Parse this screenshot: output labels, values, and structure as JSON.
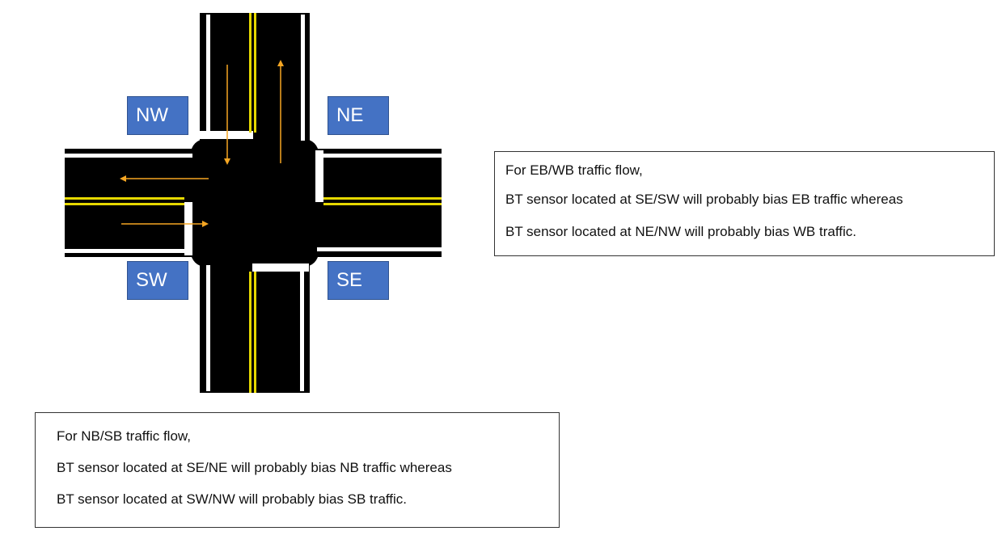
{
  "labels": {
    "nw": "NW",
    "ne": "NE",
    "sw": "SW",
    "se": "SE"
  },
  "ew_note": {
    "line1": "For EB/WB traffic flow,",
    "line2": "BT sensor located at SE/SW will probably bias EB traffic whereas",
    "line3": "BT sensor located at NE/NW will probably bias WB traffic."
  },
  "ns_note": {
    "line1": "For NB/SB traffic flow,",
    "line2": "BT sensor located at SE/NE will probably bias NB traffic whereas",
    "line3": "BT sensor located at SW/NW will probably bias SB traffic."
  },
  "colors": {
    "road": "#000000",
    "center_line": "#e6d800",
    "edge_line": "#ffffff",
    "arrow": "#f5a623",
    "label_bg": "#4472c4"
  }
}
